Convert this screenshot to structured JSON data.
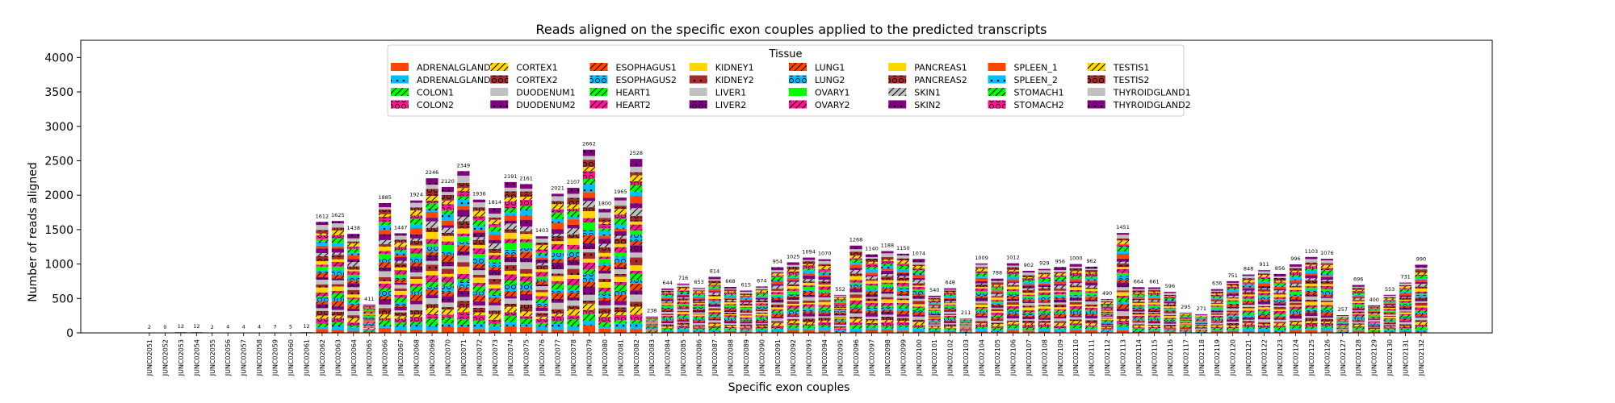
{
  "chart_data": {
    "type": "bar",
    "stacked": true,
    "title": "Reads aligned on the specific exon couples applied to the predicted transcripts",
    "xlabel": "Specific exon couples",
    "ylabel": "Number of reads aligned",
    "ylim": [
      0,
      4250
    ],
    "yticks": [
      0,
      500,
      1000,
      1500,
      2000,
      2500,
      3000,
      3500,
      4000
    ],
    "grid": false,
    "legend": {
      "title": "Tissue",
      "placement": "top-center",
      "columns": 8
    },
    "categories": [
      "JUNC02051",
      "JUNC02052",
      "JUNC02053",
      "JUNC02054",
      "JUNC02055",
      "JUNC02056",
      "JUNC02057",
      "JUNC02058",
      "JUNC02059",
      "JUNC02060",
      "JUNC02061",
      "JUNC02062",
      "JUNC02063",
      "JUNC02064",
      "JUNC02065",
      "JUNC02066",
      "JUNC02067",
      "JUNC02068",
      "JUNC02069",
      "JUNC02070",
      "JUNC02071",
      "JUNC02072",
      "JUNC02073",
      "JUNC02074",
      "JUNC02075",
      "JUNC02076",
      "JUNC02077",
      "JUNC02078",
      "JUNC02079",
      "JUNC02080",
      "JUNC02081",
      "JUNC02082",
      "JUNC02083",
      "JUNC02084",
      "JUNC02085",
      "JUNC02086",
      "JUNC02087",
      "JUNC02088",
      "JUNC02089",
      "JUNC02090",
      "JUNC02091",
      "JUNC02092",
      "JUNC02093",
      "JUNC02094",
      "JUNC02095",
      "JUNC02096",
      "JUNC02097",
      "JUNC02098",
      "JUNC02099",
      "JUNC02100",
      "JUNC02101",
      "JUNC02102",
      "JUNC02103",
      "JUNC02104",
      "JUNC02105",
      "JUNC02106",
      "JUNC02107",
      "JUNC02108",
      "JUNC02109",
      "JUNC02110",
      "JUNC02111",
      "JUNC02112",
      "JUNC02113",
      "JUNC02114",
      "JUNC02115",
      "JUNC02116",
      "JUNC02117",
      "JUNC02118",
      "JUNC02119",
      "JUNC02120",
      "JUNC02121",
      "JUNC02122",
      "JUNC02123",
      "JUNC02124",
      "JUNC02125",
      "JUNC02126",
      "JUNC02127",
      "JUNC02128",
      "JUNC02129",
      "JUNC02130",
      "JUNC02131",
      "JUNC02132"
    ],
    "totals": [
      2,
      0,
      12,
      12,
      2,
      4,
      4,
      4,
      7,
      5,
      12,
      1612,
      1625,
      1438,
      411,
      1885,
      1447,
      1924,
      2246,
      2120,
      2349,
      1936,
      1814,
      2191,
      2161,
      1403,
      2021,
      2107,
      2662,
      1800,
      1965,
      2528,
      238,
      644,
      716,
      653,
      814,
      668,
      615,
      674,
      954,
      1025,
      1094,
      1070,
      552,
      1268,
      1140,
      1188,
      1150,
      1074,
      540,
      648,
      211,
      1009,
      788,
      1012,
      902,
      929,
      956,
      1000,
      962,
      490,
      1451,
      664,
      661,
      596,
      295,
      271,
      636,
      751,
      848,
      911,
      856,
      996,
      1103,
      1076,
      257,
      696,
      400,
      553,
      731,
      990
    ],
    "series": [
      {
        "name": "ADRENALGLAND1",
        "color": "#FF4500",
        "pattern": "none"
      },
      {
        "name": "ADRENALGLAND2",
        "color": "#00BFFF",
        "pattern": "dot"
      },
      {
        "name": "COLON1",
        "color": "#00FF00",
        "pattern": "slash"
      },
      {
        "name": "COLON2",
        "color": "#FF1493",
        "pattern": "circle"
      },
      {
        "name": "CORTEX1",
        "color": "#FFD700",
        "pattern": "slash"
      },
      {
        "name": "CORTEX2",
        "color": "#A52A2A",
        "pattern": "circle"
      },
      {
        "name": "DUODENUM1",
        "color": "#C0C0C0",
        "pattern": "none"
      },
      {
        "name": "DUODENUM2",
        "color": "#800080",
        "pattern": "dot"
      },
      {
        "name": "ESOPHAGUS1",
        "color": "#FF4500",
        "pattern": "slash"
      },
      {
        "name": "ESOPHAGUS2",
        "color": "#00BFFF",
        "pattern": "circle"
      },
      {
        "name": "HEART1",
        "color": "#00FF00",
        "pattern": "slash"
      },
      {
        "name": "HEART2",
        "color": "#FF1493",
        "pattern": "slash"
      },
      {
        "name": "KIDNEY1",
        "color": "#FFD700",
        "pattern": "none"
      },
      {
        "name": "KIDNEY2",
        "color": "#A52A2A",
        "pattern": "dot"
      },
      {
        "name": "LIVER1",
        "color": "#C0C0C0",
        "pattern": "none"
      },
      {
        "name": "LIVER2",
        "color": "#800080",
        "pattern": "circle"
      },
      {
        "name": "LUNG1",
        "color": "#FF4500",
        "pattern": "slash"
      },
      {
        "name": "LUNG2",
        "color": "#00BFFF",
        "pattern": "circle"
      },
      {
        "name": "OVARY1",
        "color": "#00FF00",
        "pattern": "none"
      },
      {
        "name": "OVARY2",
        "color": "#FF1493",
        "pattern": "slash"
      },
      {
        "name": "PANCREAS1",
        "color": "#FFD700",
        "pattern": "none"
      },
      {
        "name": "PANCREAS2",
        "color": "#A52A2A",
        "pattern": "circle"
      },
      {
        "name": "SKIN1",
        "color": "#C0C0C0",
        "pattern": "slash"
      },
      {
        "name": "SKIN2",
        "color": "#800080",
        "pattern": "dot"
      },
      {
        "name": "SPLEEN_1",
        "color": "#FF4500",
        "pattern": "none"
      },
      {
        "name": "SPLEEN_2",
        "color": "#00BFFF",
        "pattern": "dot"
      },
      {
        "name": "STOMACH1",
        "color": "#00FF00",
        "pattern": "slash"
      },
      {
        "name": "STOMACH2",
        "color": "#FF1493",
        "pattern": "circle"
      },
      {
        "name": "TESTIS1",
        "color": "#FFD700",
        "pattern": "slash"
      },
      {
        "name": "TESTIS2",
        "color": "#A52A2A",
        "pattern": "circle"
      },
      {
        "name": "THYROIDGLAND1",
        "color": "#C0C0C0",
        "pattern": "none"
      },
      {
        "name": "THYROIDGLAND2",
        "color": "#800080",
        "pattern": "dot"
      }
    ]
  }
}
